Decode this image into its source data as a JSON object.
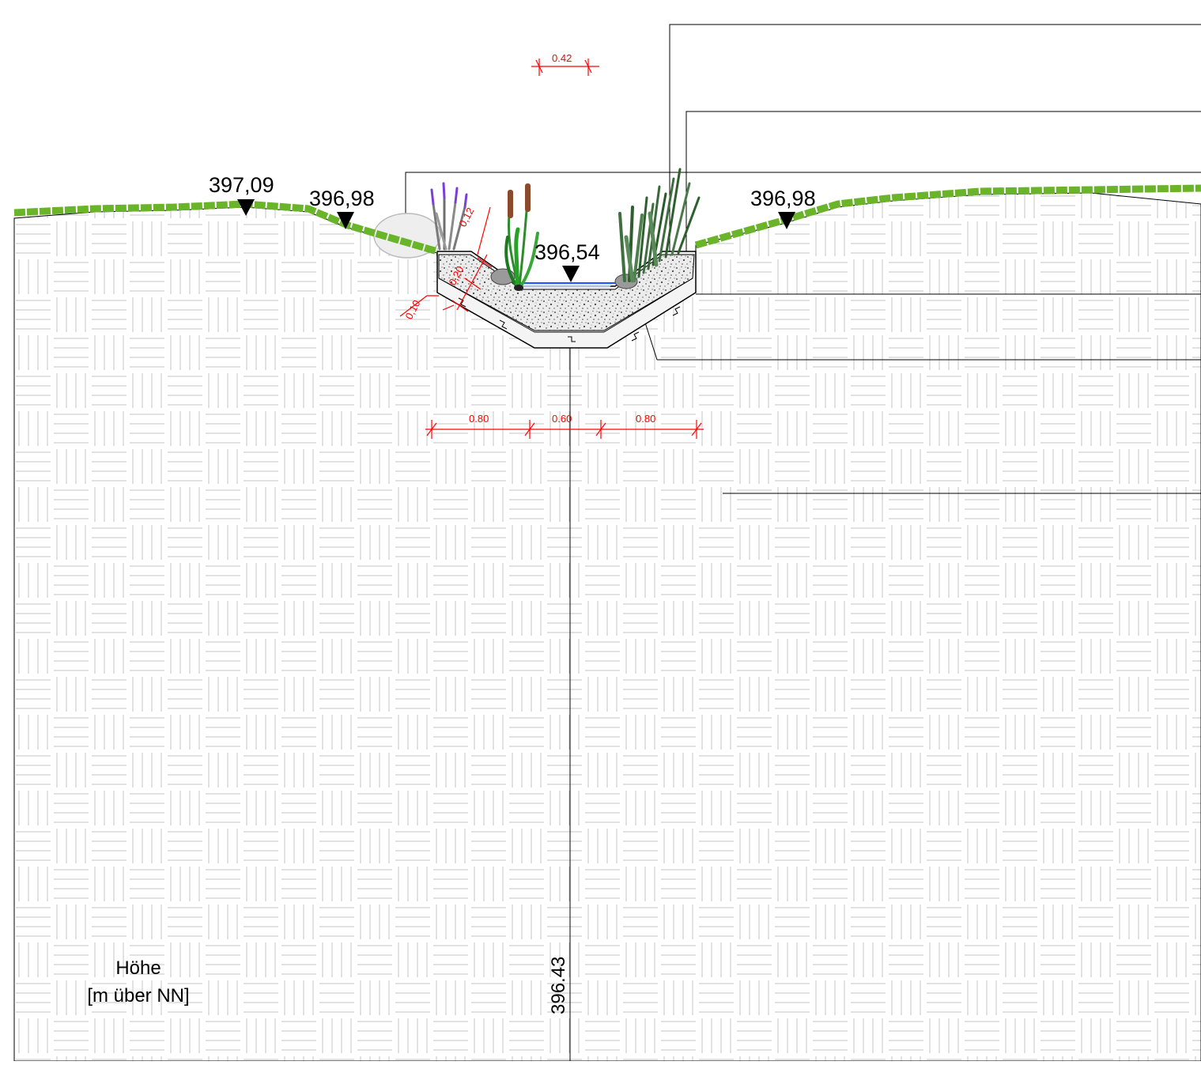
{
  "elevations": {
    "left_ground": "397,09",
    "left_bank": "396,98",
    "water_level": "396,54",
    "right_bank": "396,98"
  },
  "dimensions": {
    "top_width": "0.42",
    "cover": "0,12",
    "layer": "0,20",
    "base": "0,10",
    "bottom_left": "0.80",
    "bottom_mid": "0.60",
    "bottom_right": "0.80"
  },
  "axis": {
    "label_line1": "Höhe",
    "label_line2": "[m über NN]",
    "station_value": "396.43"
  },
  "colors": {
    "grass": "#6ab42a",
    "water": "#2255ff",
    "dimension": "#ff0000",
    "hatch": "#c8c8c8"
  }
}
